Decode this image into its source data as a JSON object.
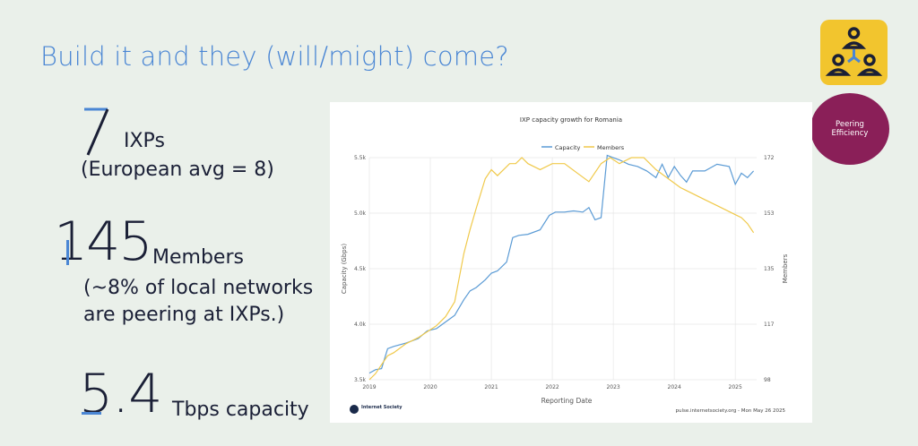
{
  "slide": {
    "title": "Build it and they (will/might) come?",
    "stats": [
      {
        "number": "7",
        "label": "IXPs",
        "note": "(European avg = 8)"
      },
      {
        "number": "145",
        "label": "Members",
        "note_line1": "(~8% of local networks",
        "note_line2": "are peering at IXPs.)"
      },
      {
        "number": "5.4",
        "label": "Tbps capacity"
      }
    ],
    "badge_label_line1": "Peering",
    "badge_label_line2": "Efficiency",
    "badge_icon": "people-network-icon",
    "colors": {
      "title": "#4a86d4",
      "accent_blue": "#4a86d4",
      "badge": "#f2c52e",
      "circle": "#8a1f58"
    }
  },
  "chart_data": {
    "type": "line",
    "title": "IXP capacity growth for Romania",
    "xlabel": "Reporting Date",
    "ylabel": "Capacity (Gbps)",
    "y2label": "Members",
    "x_ticks": [
      "2019",
      "2020",
      "2021",
      "2022",
      "2023",
      "2024",
      "2025"
    ],
    "y_ticks": [
      "3.5k",
      "4.0k",
      "4.5k",
      "5.0k",
      "5.5k"
    ],
    "y2_ticks": [
      "98",
      "117",
      "135",
      "153",
      "172"
    ],
    "ylim": [
      3500,
      5500
    ],
    "y2lim": [
      98,
      172
    ],
    "xlim": [
      2019.0,
      2025.35
    ],
    "legend": "top-center",
    "grid": true,
    "series": [
      {
        "name": "Capacity",
        "color": "#5b9bd5",
        "axis": "left",
        "x": [
          2019.0,
          2019.1,
          2019.2,
          2019.3,
          2019.4,
          2019.6,
          2019.8,
          2019.95,
          2020.1,
          2020.25,
          2020.4,
          2020.55,
          2020.65,
          2020.75,
          2020.9,
          2021.0,
          2021.1,
          2021.25,
          2021.35,
          2021.45,
          2021.6,
          2021.8,
          2021.95,
          2022.05,
          2022.2,
          2022.35,
          2022.5,
          2022.6,
          2022.7,
          2022.8,
          2022.9,
          2022.95,
          2023.1,
          2023.25,
          2023.4,
          2023.55,
          2023.7,
          2023.8,
          2023.9,
          2024.0,
          2024.1,
          2024.2,
          2024.3,
          2024.5,
          2024.7,
          2024.9,
          2025.0,
          2025.1,
          2025.2,
          2025.3
        ],
        "values": [
          3560,
          3590,
          3600,
          3780,
          3800,
          3830,
          3870,
          3940,
          3960,
          4020,
          4080,
          4220,
          4300,
          4330,
          4400,
          4460,
          4480,
          4560,
          4780,
          4800,
          4810,
          4850,
          4980,
          5010,
          5010,
          5020,
          5010,
          5050,
          4940,
          4960,
          5520,
          5510,
          5480,
          5440,
          5420,
          5380,
          5320,
          5440,
          5320,
          5420,
          5340,
          5280,
          5380,
          5380,
          5440,
          5420,
          5260,
          5360,
          5320,
          5380
        ]
      },
      {
        "name": "Members",
        "color": "#f0c94a",
        "axis": "right",
        "x": [
          2019.0,
          2019.1,
          2019.2,
          2019.3,
          2019.4,
          2019.6,
          2019.8,
          2019.95,
          2020.1,
          2020.25,
          2020.4,
          2020.55,
          2020.65,
          2020.75,
          2020.9,
          2021.0,
          2021.1,
          2021.2,
          2021.3,
          2021.4,
          2021.5,
          2021.6,
          2021.8,
          2022.0,
          2022.2,
          2022.4,
          2022.6,
          2022.8,
          2022.95,
          2023.1,
          2023.3,
          2023.5,
          2023.7,
          2023.9,
          2024.1,
          2024.3,
          2024.5,
          2024.7,
          2024.9,
          2025.0,
          2025.1,
          2025.2,
          2025.3
        ],
        "values": [
          98,
          100,
          103,
          106,
          107,
          110,
          112,
          114,
          116,
          119,
          124,
          140,
          148,
          155,
          165,
          168,
          166,
          168,
          170,
          170,
          172,
          170,
          168,
          170,
          170,
          167,
          164,
          170,
          172,
          170,
          172,
          172,
          168,
          165,
          162,
          160,
          158,
          156,
          154,
          153,
          152,
          150,
          147
        ]
      }
    ],
    "source": "pulse.internetsociety.org - Mon May 26 2025",
    "logo_text": "Internet Society"
  }
}
